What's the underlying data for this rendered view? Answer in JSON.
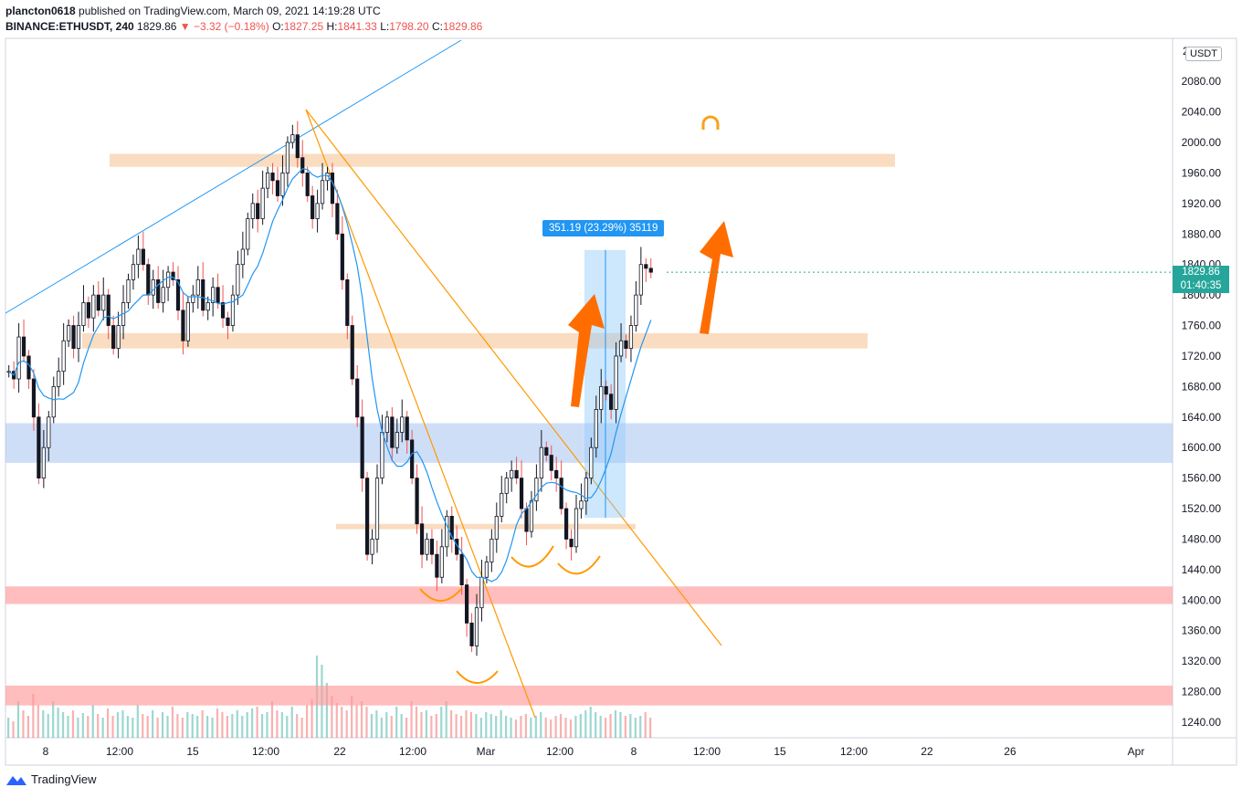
{
  "header": {
    "line1_user": "plancton0618",
    "line1_rest": " published on TradingView.com, March 09, 2021 14:19:28 UTC",
    "symbol": "BINANCE:ETHUSDT, 240",
    "last": "1829.86",
    "change": "−3.32 (−0.18%)",
    "o_label": "O:",
    "o_value": "1827.25",
    "h_label": "H:",
    "h_value": "1841.33",
    "l_label": "L:",
    "l_value": "1798.20",
    "c_label": "C:",
    "c_value": "1829.86"
  },
  "price_axis": {
    "currency": "USDT",
    "ticks": [
      "2080.00",
      "2040.00",
      "2000.00",
      "1960.00",
      "1920.00",
      "1880.00",
      "1840.00",
      "1800.00",
      "1760.00",
      "1720.00",
      "1680.00",
      "1640.00",
      "1600.00",
      "1560.00",
      "1520.00",
      "1480.00",
      "1440.00",
      "1400.00",
      "1360.00",
      "1320.00",
      "1280.00",
      "1240.00"
    ],
    "top_partial": "2"
  },
  "time_axis": {
    "ticks": [
      "8",
      "12:00",
      "15",
      "12:00",
      "22",
      "12:00",
      "Mar",
      "12:00",
      "8",
      "12:00",
      "15",
      "12:00",
      "22",
      "26",
      "Apr"
    ]
  },
  "current_price": {
    "price": "1829.86",
    "countdown": "01:40:35"
  },
  "measure_label": "351.19 (23.29%) 35119",
  "footer": {
    "brand": "TradingView"
  },
  "colors": {
    "up": "#26a69a",
    "down": "#ef5350",
    "candle": "#131722",
    "ma": "#2196f3",
    "zone_orange": "#f8c9a0",
    "zone_blue": "#9fbdf0",
    "zone_red": "#ff9a9a",
    "trend_orange": "#ff9800",
    "arrow": "#ff6d00"
  },
  "chart_data": {
    "type": "candlestick",
    "symbol": "BINANCE:ETHUSDT",
    "interval": "240",
    "x_ticks": [
      "8",
      "12:00",
      "15",
      "12:00",
      "22",
      "12:00",
      "Mar",
      "12:00",
      "8",
      "12:00",
      "15",
      "12:00",
      "22",
      "26",
      "Apr"
    ],
    "y_ticks": [
      2080,
      2040,
      2000,
      1960,
      1920,
      1880,
      1840,
      1800,
      1760,
      1720,
      1680,
      1640,
      1600,
      1560,
      1520,
      1480,
      1440,
      1400,
      1360,
      1320,
      1280,
      1240
    ],
    "ylim": [
      1215,
      2115
    ],
    "closes": [
      1700,
      1690,
      1745,
      1720,
      1690,
      1640,
      1560,
      1600,
      1640,
      1680,
      1700,
      1740,
      1760,
      1730,
      1760,
      1790,
      1770,
      1800,
      1780,
      1800,
      1760,
      1730,
      1760,
      1790,
      1820,
      1840,
      1860,
      1840,
      1800,
      1820,
      1790,
      1810,
      1830,
      1820,
      1780,
      1740,
      1790,
      1800,
      1820,
      1780,
      1790,
      1810,
      1790,
      1770,
      1760,
      1800,
      1840,
      1860,
      1900,
      1920,
      1900,
      1940,
      1960,
      1950,
      1930,
      1960,
      2000,
      2010,
      1980,
      1960,
      1930,
      1900,
      1920,
      1950,
      1960,
      1920,
      1880,
      1820,
      1760,
      1690,
      1640,
      1560,
      1460,
      1480,
      1560,
      1620,
      1640,
      1600,
      1620,
      1640,
      1610,
      1560,
      1500,
      1460,
      1480,
      1460,
      1430,
      1470,
      1510,
      1480,
      1460,
      1420,
      1370,
      1340,
      1390,
      1430,
      1450,
      1480,
      1510,
      1540,
      1560,
      1570,
      1560,
      1520,
      1490,
      1530,
      1560,
      1600,
      1590,
      1570,
      1560,
      1520,
      1480,
      1470,
      1520,
      1530,
      1560,
      1600,
      1650,
      1680,
      1670,
      1650,
      1720,
      1740,
      1730,
      1760,
      1800,
      1840,
      1835,
      1829.86
    ],
    "volumes": [
      22,
      18,
      40,
      30,
      24,
      48,
      36,
      30,
      26,
      40,
      33,
      28,
      24,
      30,
      22,
      27,
      24,
      36,
      26,
      22,
      32,
      24,
      28,
      30,
      24,
      22,
      36,
      26,
      24,
      30,
      22,
      28,
      24,
      34,
      26,
      22,
      28,
      26,
      24,
      30,
      24,
      22,
      32,
      28,
      24,
      26,
      30,
      24,
      28,
      32,
      34,
      26,
      28,
      40,
      30,
      28,
      24,
      34,
      26,
      22,
      36,
      42,
      90,
      80,
      60,
      46,
      38,
      34,
      30,
      46,
      36,
      40,
      34,
      26,
      30,
      22,
      28,
      24,
      34,
      26,
      22,
      40,
      34,
      28,
      30,
      24,
      26,
      34,
      40,
      30,
      26,
      24,
      30,
      28,
      26,
      22,
      28,
      26,
      24,
      30,
      24,
      22,
      20,
      24,
      26,
      22,
      24,
      28,
      22,
      20,
      24,
      26,
      22,
      20,
      24,
      26,
      30,
      34,
      28,
      24,
      22,
      26,
      30,
      28,
      24,
      26,
      22,
      24,
      28,
      22
    ],
    "zones": [
      {
        "type": "resistance",
        "top": 1985,
        "bottom": 1968
      },
      {
        "type": "support",
        "top": 1750,
        "bottom": 1730
      },
      {
        "type": "support",
        "top": 1632,
        "bottom": 1580
      },
      {
        "type": "support",
        "top": 1500,
        "bottom": 1493
      },
      {
        "type": "support",
        "top": 1418,
        "bottom": 1395
      },
      {
        "type": "support",
        "top": 1288,
        "bottom": 1262
      }
    ],
    "measure": {
      "from": 1508,
      "to": 1859,
      "text": "351.19 (23.29%) 35119"
    },
    "current": {
      "price": 1829.86,
      "countdown": "01:40:35"
    }
  }
}
